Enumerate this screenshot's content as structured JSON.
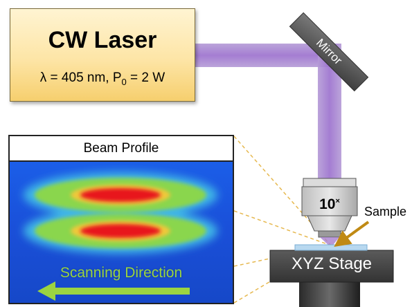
{
  "laser": {
    "title": "CW Laser",
    "lambda": "λ = 405 nm, P",
    "power_sub": "0",
    "power_rest": " = 2 W"
  },
  "mirror": {
    "label": "Mirror"
  },
  "beam_profile": {
    "title": "Beam Profile",
    "scan_label": "Scanning Direction"
  },
  "objective": {
    "label": "10",
    "sup": "×"
  },
  "sample": {
    "label": "Sample"
  },
  "stage": {
    "label": "XYZ Stage"
  },
  "colors": {
    "beam": "#a77fcf",
    "laser_box": "#fde5a6",
    "mirror": "#5a5a5a",
    "stage": "#4a4a4a",
    "arrow": "#9bd441",
    "sample_arrow": "#c08a14",
    "dash_line": "#e6b84e"
  }
}
